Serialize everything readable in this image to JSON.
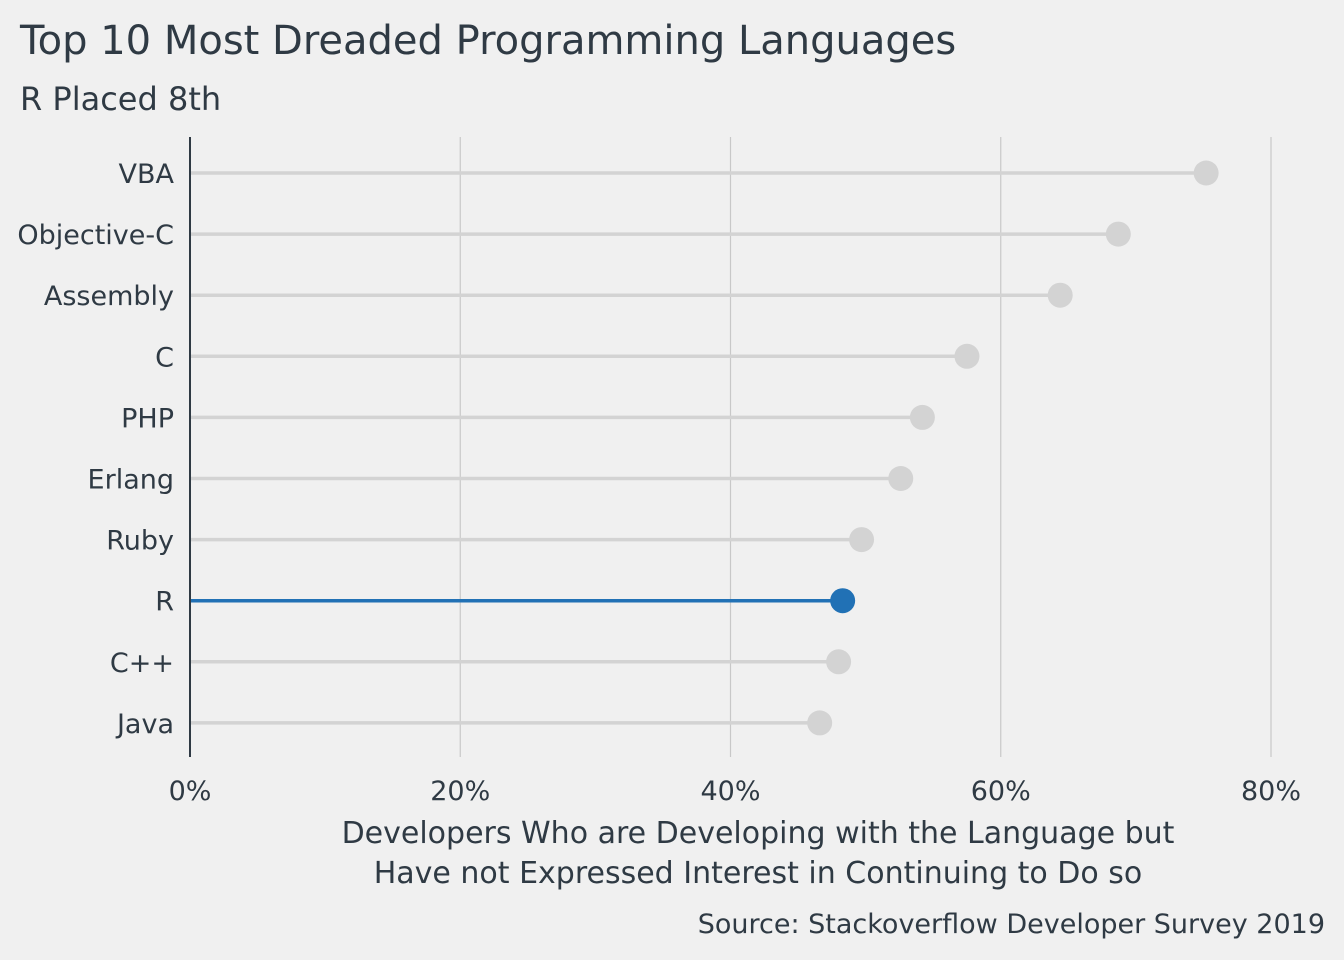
{
  "chart_data": {
    "type": "lollipop",
    "title": "Top 10 Most Dreaded Programming Languages",
    "subtitle": "R Placed 8th",
    "xlabel_lines": [
      "Developers Who are Developing with the Language but",
      "Have not Expressed Interest in Continuing to Do so"
    ],
    "caption": "Source: Stackoverflow Developer Survey 2019",
    "xlim": [
      0,
      80
    ],
    "xticks": [
      0,
      20,
      40,
      60,
      80
    ],
    "xtick_labels": [
      "0%",
      "20%",
      "40%",
      "60%",
      "80%"
    ],
    "grid": "vertical",
    "categories": [
      "VBA",
      "Objective-C",
      "Assembly",
      "C",
      "PHP",
      "Erlang",
      "Ruby",
      "R",
      "C++",
      "Java"
    ],
    "values": [
      75.2,
      68.7,
      64.4,
      57.5,
      54.2,
      52.6,
      49.7,
      48.3,
      48.0,
      46.6
    ],
    "highlight": "R",
    "colors": {
      "background": "#f0f0f0",
      "default_point": "#d3d3d3",
      "highlight_point": "#2171b5",
      "grid": "#c8c8c8",
      "axis": "#2f3a44",
      "text": "#2f3a44"
    }
  }
}
